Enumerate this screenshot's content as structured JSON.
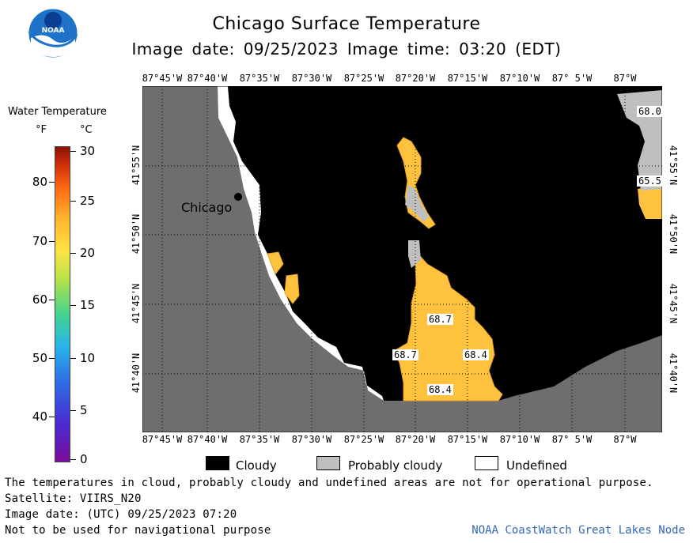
{
  "header": {
    "title": "Chicago Surface Temperature",
    "subtitle": "Image date: 09/25/2023   Image time: 03:20 (EDT)"
  },
  "logo": {
    "text": "NOAA",
    "icon": "noaa-logo"
  },
  "legend": {
    "title": "Water Temperature",
    "unit_f": "°F",
    "unit_c": "°C",
    "f_ticks": [
      "80",
      "70",
      "60",
      "50",
      "40"
    ],
    "c_ticks": [
      "30",
      "25",
      "20",
      "15",
      "10",
      "5",
      "0"
    ]
  },
  "map": {
    "lon_labels": [
      "87°45'W",
      "87°40'W",
      "87°35'W",
      "87°30'W",
      "87°25'W",
      "87°20'W",
      "87°15'W",
      "87°10'W",
      "87° 5'W",
      "87°W"
    ],
    "lat_labels": [
      "41°55'N",
      "41°50'N",
      "41°45'N",
      "41°40'N"
    ],
    "city": "Chicago",
    "temp_labels": [
      "68.0",
      "65.5",
      "68.7",
      "68.7",
      "68.4",
      "68.4"
    ],
    "colors": {
      "land": "#6e6e6e",
      "cloudy": "#000000",
      "probably_cloudy": "#bfbfbf",
      "undefined": "#ffffff",
      "water_warm": "#ffc23f"
    }
  },
  "key": {
    "cloudy": "Cloudy",
    "probably_cloudy": "Probably cloudy",
    "undefined": "Undefined"
  },
  "footer": {
    "note": "The temperatures in cloud, probably cloudy and undefined areas are not for operational purpose.",
    "satellite": "Satellite: VIIRS_N20",
    "date_utc": "Image date: (UTC) 09/25/2023  07:20",
    "nav": "Not to be used for navigational purpose",
    "credit": "NOAA CoastWatch Great Lakes Node"
  }
}
